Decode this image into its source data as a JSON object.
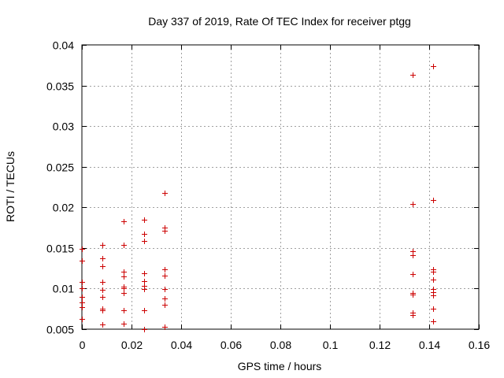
{
  "chart_data": {
    "type": "scatter",
    "title": "Day 337 of 2019, Rate Of TEC Index for receiver ptgg",
    "xlabel": "GPS time / hours",
    "ylabel": "ROTI / TECUs",
    "xlim": [
      0,
      0.16
    ],
    "ylim": [
      0.005,
      0.04
    ],
    "grid": true,
    "marker": "+",
    "marker_color": "#cc0000",
    "x_ticks": [
      0,
      0.02,
      0.04,
      0.06,
      0.08,
      0.1,
      0.12,
      0.14,
      0.16
    ],
    "x_tick_labels": [
      "0",
      "0.02",
      "0.04",
      "0.06",
      "0.08",
      "0.1",
      "0.12",
      "0.14",
      "0.16"
    ],
    "y_ticks": [
      0.005,
      0.01,
      0.015,
      0.02,
      0.025,
      0.03,
      0.035,
      0.04
    ],
    "y_tick_labels": [
      "0.005",
      "0.01",
      "0.015",
      "0.02",
      "0.025",
      "0.03",
      "0.035",
      "0.04"
    ],
    "points": [
      [
        0.0,
        0.0149
      ],
      [
        0.0,
        0.0134
      ],
      [
        0.0,
        0.0108
      ],
      [
        0.0,
        0.01
      ],
      [
        0.0,
        0.009
      ],
      [
        0.0,
        0.0083
      ],
      [
        0.0,
        0.0077
      ],
      [
        0.0,
        0.0063
      ],
      [
        0.0083,
        0.0154
      ],
      [
        0.0083,
        0.0137
      ],
      [
        0.0083,
        0.0128
      ],
      [
        0.0083,
        0.0108
      ],
      [
        0.0083,
        0.0098
      ],
      [
        0.0083,
        0.009
      ],
      [
        0.0083,
        0.0075
      ],
      [
        0.0083,
        0.0073
      ],
      [
        0.0083,
        0.0056
      ],
      [
        0.0167,
        0.0183
      ],
      [
        0.0167,
        0.0154
      ],
      [
        0.0167,
        0.0121
      ],
      [
        0.0167,
        0.0115
      ],
      [
        0.0167,
        0.0102
      ],
      [
        0.0167,
        0.01
      ],
      [
        0.0167,
        0.0095
      ],
      [
        0.0167,
        0.0073
      ],
      [
        0.0167,
        0.0057
      ],
      [
        0.025,
        0.0185
      ],
      [
        0.025,
        0.0167
      ],
      [
        0.025,
        0.0159
      ],
      [
        0.025,
        0.0119
      ],
      [
        0.025,
        0.0109
      ],
      [
        0.025,
        0.0103
      ],
      [
        0.025,
        0.0099
      ],
      [
        0.025,
        0.0073
      ],
      [
        0.025,
        0.005
      ],
      [
        0.0333,
        0.0218
      ],
      [
        0.0333,
        0.0175
      ],
      [
        0.0333,
        0.0171
      ],
      [
        0.0333,
        0.0124
      ],
      [
        0.0333,
        0.0116
      ],
      [
        0.0333,
        0.0099
      ],
      [
        0.0333,
        0.0088
      ],
      [
        0.0333,
        0.008
      ],
      [
        0.0333,
        0.0053
      ],
      [
        0.1333,
        0.0363
      ],
      [
        0.1333,
        0.0204
      ],
      [
        0.1333,
        0.0146
      ],
      [
        0.1333,
        0.0141
      ],
      [
        0.1333,
        0.0118
      ],
      [
        0.1333,
        0.0095
      ],
      [
        0.1333,
        0.0093
      ],
      [
        0.1333,
        0.007
      ],
      [
        0.1333,
        0.0067
      ],
      [
        0.1417,
        0.0374
      ],
      [
        0.1417,
        0.0209
      ],
      [
        0.1417,
        0.0124
      ],
      [
        0.1417,
        0.0121
      ],
      [
        0.1417,
        0.0111
      ],
      [
        0.1417,
        0.0099
      ],
      [
        0.1417,
        0.0096
      ],
      [
        0.1417,
        0.0092
      ],
      [
        0.1417,
        0.0075
      ],
      [
        0.1417,
        0.006
      ]
    ]
  }
}
